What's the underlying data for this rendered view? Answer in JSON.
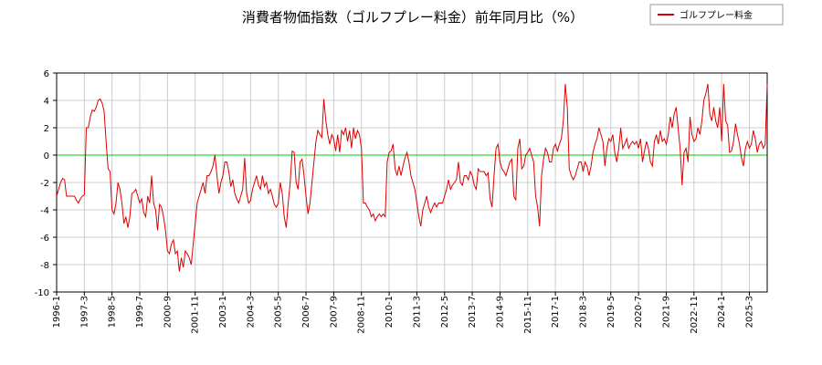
{
  "chart_data": {
    "type": "line",
    "title": "消費者物価指数（ゴルフプレー料金）前年同月比（%）",
    "categories": [
      "1996-1",
      null,
      null,
      null,
      null,
      null,
      null,
      null,
      null,
      null,
      null,
      null,
      null,
      null,
      "1997-3",
      null,
      null,
      null,
      null,
      null,
      null,
      null,
      null,
      null,
      null,
      null,
      null,
      null,
      "1998-5",
      null,
      null,
      null,
      null,
      null,
      null,
      null,
      null,
      null,
      null,
      null,
      null,
      null,
      "1999-7",
      null,
      null,
      null,
      null,
      null,
      null,
      null,
      null,
      null,
      null,
      null,
      null,
      null,
      "2000-9",
      null,
      null,
      null,
      null,
      null,
      null,
      null,
      null,
      null,
      null,
      null,
      null,
      null,
      "2001-11",
      null,
      null,
      null,
      null,
      null,
      null,
      null,
      null,
      null,
      null,
      null,
      null,
      null,
      "2003-1",
      null,
      null,
      null,
      null,
      null,
      null,
      null,
      null,
      null,
      null,
      null,
      null,
      null,
      "2004-3",
      null,
      null,
      null,
      null,
      null,
      null,
      null,
      null,
      null,
      null,
      null,
      null,
      null,
      "2005-5",
      null,
      null,
      null,
      null,
      null,
      null,
      null,
      null,
      null,
      null,
      null,
      null,
      null,
      "2006-7",
      null,
      null,
      null,
      null,
      null,
      null,
      null,
      null,
      null,
      null,
      null,
      null,
      null,
      "2007-9",
      null,
      null,
      null,
      null,
      null,
      null,
      null,
      null,
      null,
      null,
      null,
      null,
      null,
      "2008-11",
      null,
      null,
      null,
      null,
      null,
      null,
      null,
      null,
      null,
      null,
      null,
      null,
      null,
      "2010-1",
      null,
      null,
      null,
      null,
      null,
      null,
      null,
      null,
      null,
      null,
      null,
      null,
      null,
      "2011-3",
      null,
      null,
      null,
      null,
      null,
      null,
      null,
      null,
      null,
      null,
      null,
      null,
      null,
      "2012-5",
      null,
      null,
      null,
      null,
      null,
      null,
      null,
      null,
      null,
      null,
      null,
      null,
      null,
      "2013-7",
      null,
      null,
      null,
      null,
      null,
      null,
      null,
      null,
      null,
      null,
      null,
      null,
      null,
      "2014-9",
      null,
      null,
      null,
      null,
      null,
      null,
      null,
      null,
      null,
      null,
      null,
      null,
      null,
      "2015-11",
      null,
      null,
      null,
      null,
      null,
      null,
      null,
      null,
      null,
      null,
      null,
      null,
      null,
      "2017-1",
      null,
      null,
      null,
      null,
      null,
      null,
      null,
      null,
      null,
      null,
      null,
      null,
      null,
      "2018-3",
      null,
      null,
      null,
      null,
      null,
      null,
      null,
      null,
      null,
      null,
      null,
      null,
      null,
      "2019-5",
      null,
      null,
      null,
      null,
      null,
      null,
      null,
      null,
      null,
      null,
      null,
      null,
      null,
      "2020-7",
      null,
      null,
      null,
      null,
      null,
      null,
      null,
      null,
      null,
      null,
      null,
      null,
      null,
      "2021-9",
      null,
      null,
      null,
      null,
      null,
      null,
      null,
      null,
      null,
      null,
      null,
      null,
      null,
      "2022-11",
      null,
      null,
      null,
      null,
      null,
      null,
      null,
      null,
      null,
      null,
      null,
      null,
      null,
      "2024-1",
      null,
      null,
      null,
      null,
      null,
      null,
      null,
      null,
      null,
      null,
      null,
      null,
      null,
      "2025-3",
      null,
      null,
      null,
      null,
      null,
      null,
      null,
      null,
      null
    ],
    "series": [
      {
        "name": "ゴルフプレー料金",
        "color": "#dd0000",
        "values": [
          -3,
          -2.5,
          -2,
          -1.7,
          -1.8,
          -3,
          -3,
          -3,
          -3,
          -3,
          -3.3,
          -3.5,
          -3.2,
          -3,
          -2.9,
          2,
          2,
          2.8,
          3.3,
          3.2,
          3.5,
          4,
          4.1,
          3.8,
          3.2,
          1,
          -1,
          -1.2,
          -4,
          -4.3,
          -3.5,
          -2,
          -2.5,
          -3.5,
          -5,
          -4.5,
          -5.3,
          -4.5,
          -2.8,
          -2.7,
          -2.5,
          -3,
          -3.5,
          -3.2,
          -4.2,
          -4.5,
          -3,
          -3.5,
          -1.5,
          -3.5,
          -4,
          -5.5,
          -3.6,
          -3.8,
          -4.5,
          -5.5,
          -7,
          -7.2,
          -6.5,
          -6.2,
          -7.2,
          -7,
          -8.5,
          -7.5,
          -8.2,
          -7,
          -7.2,
          -7.5,
          -8,
          -6.5,
          -5,
          -3.5,
          -3,
          -2.5,
          -2,
          -2.8,
          -1.5,
          -1.5,
          -1.2,
          -0.8,
          0,
          -1.5,
          -2.8,
          -2,
          -1.5,
          -0.5,
          -0.5,
          -1.2,
          -2.3,
          -1.8,
          -2.8,
          -3.2,
          -3.5,
          -3,
          -2.5,
          -0.2,
          -2.8,
          -3.5,
          -3.3,
          -2.5,
          -2,
          -1.5,
          -2.2,
          -2.5,
          -1.5,
          -2.3,
          -2,
          -2.8,
          -2.5,
          -3,
          -3.6,
          -3.8,
          -3.5,
          -2,
          -2.8,
          -4.5,
          -5.3,
          -3.5,
          -2,
          0.3,
          0.2,
          -2,
          -2.5,
          -0.5,
          -0.3,
          -1.5,
          -3,
          -4.3,
          -3.5,
          -2,
          -0.5,
          1,
          1.8,
          1.5,
          1.3,
          4.1,
          2.5,
          1.5,
          0.8,
          1.5,
          1.2,
          0.3,
          1.5,
          0.2,
          1.8,
          1.5,
          2,
          1,
          1.8,
          0.5,
          2,
          1.2,
          1.8,
          1.5,
          0.5,
          -3.5,
          -3.5,
          -3.8,
          -4,
          -4.5,
          -4.3,
          -4.8,
          -4.5,
          -4.3,
          -4.5,
          -4.3,
          -4.5,
          -0.5,
          0.2,
          0.3,
          0.8,
          -1,
          -1.5,
          -0.8,
          -1.5,
          -0.8,
          -0.2,
          0.2,
          -0.5,
          -1.5,
          -2,
          -2.5,
          -3.5,
          -4.5,
          -5.2,
          -4,
          -3.5,
          -3,
          -3.8,
          -4.2,
          -3.8,
          -3.5,
          -3.8,
          -3.5,
          -3.5,
          -3.5,
          -3,
          -2.5,
          -1.8,
          -2.5,
          -2.2,
          -2,
          -1.8,
          -0.5,
          -2,
          -2.2,
          -1.5,
          -1.5,
          -1.8,
          -1.2,
          -1.5,
          -2.2,
          -2.5,
          -1,
          -1.2,
          -1.2,
          -1.2,
          -1.5,
          -1.3,
          -3.2,
          -3.8,
          -1.5,
          0.5,
          0.8,
          -0.5,
          -1,
          -1.2,
          -1.5,
          -1,
          -0.5,
          -0.3,
          -3,
          -3.3,
          0.5,
          1.2,
          -1,
          -0.8,
          0,
          0.2,
          0.5,
          0,
          -0.5,
          -3,
          -3.8,
          -5.2,
          -1.5,
          -0.3,
          0.5,
          0.2,
          -0.5,
          -0.5,
          0.5,
          0.8,
          0.3,
          0.8,
          1.2,
          2.5,
          5.2,
          3.5,
          -1,
          -1.5,
          -1.8,
          -1.5,
          -1,
          -0.5,
          -0.5,
          -1.2,
          -0.5,
          -0.8,
          -1.5,
          -0.8,
          0.2,
          0.8,
          1.2,
          2,
          1.5,
          1,
          -0.8,
          0.5,
          1.2,
          1,
          1.5,
          0.2,
          -0.5,
          0.5,
          2,
          0.5,
          0.8,
          1.2,
          0.5,
          0.8,
          1,
          0.8,
          1,
          0.5,
          1.2,
          -0.5,
          0.3,
          1,
          0.5,
          -0.5,
          -0.8,
          1,
          1.5,
          0.8,
          1.8,
          1,
          1.2,
          0.8,
          1.5,
          2.8,
          2,
          3,
          3.5,
          2,
          0.5,
          -2.2,
          0.2,
          0.5,
          -0.5,
          2.8,
          1.5,
          1,
          1.2,
          2,
          1.5,
          2.5,
          4,
          4.5,
          5.2,
          3,
          2.5,
          3.5,
          2.5,
          2,
          3.5,
          1,
          5.2,
          2.5,
          2.2,
          0.2,
          0.3,
          1,
          2.3,
          1.5,
          0.8,
          -0.2,
          -0.8,
          0.5,
          1,
          0.5,
          0.8,
          1.8,
          1.2,
          0.2,
          0.8,
          1,
          0.5,
          0.8,
          5.2
        ]
      }
    ],
    "ylim": [
      -10,
      6
    ],
    "yticks": [
      -10,
      -8,
      -6,
      -4,
      -2,
      0,
      2,
      4,
      6
    ],
    "grid": true,
    "reference_line": {
      "value": 0,
      "color": "#00cc00"
    },
    "legend": "top-right"
  }
}
